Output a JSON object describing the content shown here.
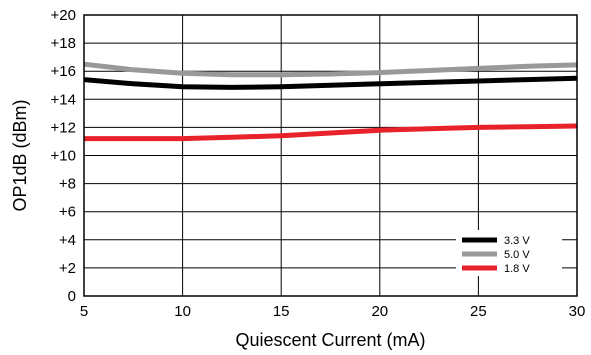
{
  "chart_data": {
    "type": "line",
    "title": "",
    "xlabel": "Quiescent Current (mA)",
    "ylabel": "OP1dB (dBm)",
    "xlim": [
      5,
      30
    ],
    "ylim": [
      0,
      20
    ],
    "x_ticks": [
      5,
      10,
      15,
      20,
      25,
      30
    ],
    "x_tick_labels": [
      "5",
      "10",
      "15",
      "20",
      "25",
      "30"
    ],
    "y_ticks": [
      0,
      2,
      4,
      6,
      8,
      10,
      12,
      14,
      16,
      18,
      20
    ],
    "y_tick_labels": [
      "0",
      "+2",
      "+4",
      "+6",
      "+8",
      "+10",
      "+12",
      "+14",
      "+16",
      "+18",
      "+20"
    ],
    "grid": true,
    "legend_position": "bottom-right",
    "series": [
      {
        "name": "3.3 V",
        "color": "#000000",
        "points": [
          [
            5,
            15.4
          ],
          [
            7.5,
            15.1
          ],
          [
            10,
            14.9
          ],
          [
            12.5,
            14.85
          ],
          [
            15,
            14.9
          ],
          [
            17.5,
            15.0
          ],
          [
            20,
            15.1
          ],
          [
            22.5,
            15.2
          ],
          [
            25,
            15.3
          ],
          [
            27.5,
            15.4
          ],
          [
            30,
            15.5
          ]
        ]
      },
      {
        "name": "5.0 V",
        "color": "#999999",
        "points": [
          [
            5,
            16.5
          ],
          [
            7.5,
            16.1
          ],
          [
            10,
            15.85
          ],
          [
            12.5,
            15.75
          ],
          [
            15,
            15.75
          ],
          [
            17.5,
            15.8
          ],
          [
            20,
            15.9
          ],
          [
            22.5,
            16.05
          ],
          [
            25,
            16.2
          ],
          [
            27.5,
            16.35
          ],
          [
            30,
            16.45
          ]
        ]
      },
      {
        "name": "1.8 V",
        "color": "#e8222a",
        "points": [
          [
            5,
            11.2
          ],
          [
            7.5,
            11.2
          ],
          [
            10,
            11.2
          ],
          [
            12.5,
            11.3
          ],
          [
            15,
            11.4
          ],
          [
            17.5,
            11.6
          ],
          [
            20,
            11.8
          ],
          [
            22.5,
            11.9
          ],
          [
            25,
            12.0
          ],
          [
            27.5,
            12.05
          ],
          [
            30,
            12.1
          ]
        ]
      }
    ]
  }
}
